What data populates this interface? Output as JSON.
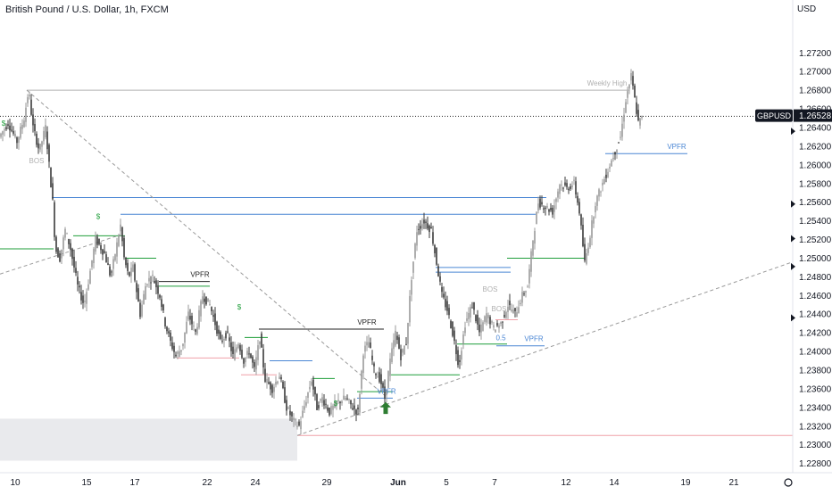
{
  "header": {
    "title": "British Pound / U.S. Dollar, 1h, FXCM"
  },
  "colors": {
    "candle_dark": "#3a3a3a",
    "candle_light": "#9a9a9a",
    "green": "#1f9e3a",
    "blue": "#4a86d4",
    "pink": "#f0a0a8",
    "gray_line": "#b0b0b0",
    "dark_line": "#222222",
    "arrow": "#2e7d32",
    "zone": "#e9eaed"
  },
  "chart_data": {
    "type": "candlestick",
    "title": "British Pound / U.S. Dollar, 1h, FXCM",
    "y_axis_label": "USD",
    "ylim": [
      1.2272,
      1.2748
    ],
    "y_ticks": [
      {
        "value": 1.272,
        "label": "1.27200"
      },
      {
        "value": 1.27,
        "label": "1.27000"
      },
      {
        "value": 1.268,
        "label": "1.26800"
      },
      {
        "value": 1.266,
        "label": "1.26600"
      },
      {
        "value": 1.264,
        "label": "1.26400"
      },
      {
        "value": 1.262,
        "label": "1.26200"
      },
      {
        "value": 1.26,
        "label": "1.26000"
      },
      {
        "value": 1.258,
        "label": "1.25800"
      },
      {
        "value": 1.256,
        "label": "1.25600"
      },
      {
        "value": 1.254,
        "label": "1.25400"
      },
      {
        "value": 1.252,
        "label": "1.25200"
      },
      {
        "value": 1.25,
        "label": "1.25000"
      },
      {
        "value": 1.248,
        "label": "1.24800"
      },
      {
        "value": 1.246,
        "label": "1.24600"
      },
      {
        "value": 1.244,
        "label": "1.24400"
      },
      {
        "value": 1.242,
        "label": "1.24200"
      },
      {
        "value": 1.24,
        "label": "1.24000"
      },
      {
        "value": 1.238,
        "label": "1.23800"
      },
      {
        "value": 1.236,
        "label": "1.23600"
      },
      {
        "value": 1.234,
        "label": "1.23400"
      },
      {
        "value": 1.232,
        "label": "1.23200"
      },
      {
        "value": 1.23,
        "label": "1.23000"
      },
      {
        "value": 1.228,
        "label": "1.22800"
      }
    ],
    "x_ticks": [
      "10",
      "15",
      "17",
      "22",
      "24",
      "29",
      "Jun",
      "5",
      "7",
      "12",
      "14",
      "19",
      "21"
    ],
    "x_tick_bold": "Jun",
    "last_price": {
      "symbol": "GBPUSD",
      "value": 1.26528,
      "label": "1.26528"
    },
    "axis_markers": [
      1.2636,
      1.2558,
      1.2521,
      1.2491,
      1.2436
    ],
    "price_path": [
      [
        0,
        1.263
      ],
      [
        10,
        1.2645
      ],
      [
        20,
        1.2625
      ],
      [
        28,
        1.265
      ],
      [
        33,
        1.268
      ],
      [
        38,
        1.264
      ],
      [
        45,
        1.2615
      ],
      [
        52,
        1.264
      ],
      [
        56,
        1.26
      ],
      [
        60,
        1.256
      ],
      [
        63,
        1.251
      ],
      [
        68,
        1.25
      ],
      [
        74,
        1.253
      ],
      [
        80,
        1.251
      ],
      [
        88,
        1.247
      ],
      [
        95,
        1.245
      ],
      [
        100,
        1.2475
      ],
      [
        108,
        1.252
      ],
      [
        118,
        1.2505
      ],
      [
        125,
        1.248
      ],
      [
        132,
        1.2515
      ],
      [
        136,
        1.2535
      ],
      [
        140,
        1.25
      ],
      [
        145,
        1.248
      ],
      [
        150,
        1.249
      ],
      [
        158,
        1.244
      ],
      [
        165,
        1.2475
      ],
      [
        172,
        1.248
      ],
      [
        180,
        1.246
      ],
      [
        186,
        1.243
      ],
      [
        192,
        1.241
      ],
      [
        198,
        1.2395
      ],
      [
        205,
        1.2405
      ],
      [
        212,
        1.244
      ],
      [
        220,
        1.242
      ],
      [
        228,
        1.246
      ],
      [
        236,
        1.245
      ],
      [
        242,
        1.243
      ],
      [
        248,
        1.241
      ],
      [
        255,
        1.242
      ],
      [
        262,
        1.2395
      ],
      [
        268,
        1.241
      ],
      [
        274,
        1.239
      ],
      [
        280,
        1.24
      ],
      [
        286,
        1.238
      ],
      [
        292,
        1.2415
      ],
      [
        298,
        1.237
      ],
      [
        306,
        1.236
      ],
      [
        314,
        1.2375
      ],
      [
        322,
        1.234
      ],
      [
        330,
        1.2325
      ],
      [
        336,
        1.232
      ],
      [
        343,
        1.2345
      ],
      [
        350,
        1.237
      ],
      [
        356,
        1.234
      ],
      [
        362,
        1.235
      ],
      [
        370,
        1.2335
      ],
      [
        378,
        1.2345
      ],
      [
        388,
        1.235
      ],
      [
        396,
        1.234
      ],
      [
        402,
        1.2335
      ],
      [
        408,
        1.24
      ],
      [
        414,
        1.241
      ],
      [
        420,
        1.238
      ],
      [
        427,
        1.237
      ],
      [
        432,
        1.235
      ],
      [
        438,
        1.239
      ],
      [
        444,
        1.242
      ],
      [
        450,
        1.2395
      ],
      [
        456,
        1.241
      ],
      [
        462,
        1.248
      ],
      [
        468,
        1.253
      ],
      [
        476,
        1.254
      ],
      [
        484,
        1.253
      ],
      [
        490,
        1.2495
      ],
      [
        496,
        1.246
      ],
      [
        502,
        1.2445
      ],
      [
        508,
        1.242
      ],
      [
        515,
        1.2385
      ],
      [
        522,
        1.243
      ],
      [
        530,
        1.245
      ],
      [
        538,
        1.242
      ],
      [
        546,
        1.244
      ],
      [
        554,
        1.2425
      ],
      [
        562,
        1.243
      ],
      [
        570,
        1.245
      ],
      [
        578,
        1.244
      ],
      [
        586,
        1.246
      ],
      [
        592,
        1.247
      ],
      [
        598,
        1.252
      ],
      [
        604,
        1.256
      ],
      [
        612,
        1.2555
      ],
      [
        620,
        1.255
      ],
      [
        628,
        1.258
      ],
      [
        636,
        1.2575
      ],
      [
        644,
        1.258
      ],
      [
        650,
        1.255
      ],
      [
        656,
        1.2495
      ],
      [
        662,
        1.2525
      ],
      [
        668,
        1.256
      ],
      [
        676,
        1.258
      ],
      [
        684,
        1.26
      ],
      [
        690,
        1.2615
      ],
      [
        696,
        1.263
      ],
      [
        702,
        1.267
      ],
      [
        708,
        1.2695
      ],
      [
        712,
        1.267
      ],
      [
        716,
        1.2645
      ],
      [
        720,
        1.265
      ]
    ],
    "horizontal_levels": [
      {
        "y": 1.268,
        "x0": 30,
        "x1": 705,
        "color": "gray",
        "style": "solid"
      },
      {
        "y": 1.2652,
        "x0": 0,
        "x1": 888,
        "color": "dark",
        "style": "dotted"
      },
      {
        "y": 1.2565,
        "x0": 58,
        "x1": 612,
        "color": "blue",
        "style": "solid"
      },
      {
        "y": 1.2547,
        "x0": 135,
        "x1": 600,
        "color": "blue",
        "style": "solid"
      },
      {
        "y": 1.251,
        "x0": 0,
        "x1": 60,
        "color": "green",
        "style": "solid"
      },
      {
        "y": 1.2524,
        "x0": 82,
        "x1": 140,
        "color": "green",
        "style": "solid"
      },
      {
        "y": 1.25,
        "x0": 140,
        "x1": 175,
        "color": "green",
        "style": "solid"
      },
      {
        "y": 1.25,
        "x0": 568,
        "x1": 655,
        "color": "green",
        "style": "solid"
      },
      {
        "y": 1.2485,
        "x0": 488,
        "x1": 572,
        "color": "blue",
        "style": "solid"
      },
      {
        "y": 1.249,
        "x0": 488,
        "x1": 572,
        "color": "blue",
        "style": "solid"
      },
      {
        "y": 1.2475,
        "x0": 178,
        "x1": 235,
        "color": "dark",
        "style": "solid"
      },
      {
        "y": 1.247,
        "x0": 178,
        "x1": 235,
        "color": "green",
        "style": "solid"
      },
      {
        "y": 1.2424,
        "x0": 290,
        "x1": 430,
        "color": "dark",
        "style": "solid"
      },
      {
        "y": 1.2415,
        "x0": 274,
        "x1": 300,
        "color": "green",
        "style": "solid"
      },
      {
        "y": 1.2393,
        "x0": 198,
        "x1": 268,
        "color": "pink",
        "style": "solid"
      },
      {
        "y": 1.2408,
        "x0": 512,
        "x1": 568,
        "color": "green",
        "style": "solid"
      },
      {
        "y": 1.2406,
        "x0": 556,
        "x1": 610,
        "color": "blue",
        "style": "solid"
      },
      {
        "y": 1.239,
        "x0": 302,
        "x1": 350,
        "color": "blue",
        "style": "solid"
      },
      {
        "y": 1.2375,
        "x0": 270,
        "x1": 310,
        "color": "pink",
        "style": "solid"
      },
      {
        "y": 1.2375,
        "x0": 438,
        "x1": 515,
        "color": "green",
        "style": "solid"
      },
      {
        "y": 1.2371,
        "x0": 350,
        "x1": 375,
        "color": "green",
        "style": "solid"
      },
      {
        "y": 1.2357,
        "x0": 400,
        "x1": 440,
        "color": "green",
        "style": "solid"
      },
      {
        "y": 1.235,
        "x0": 400,
        "x1": 440,
        "color": "blue",
        "style": "solid"
      },
      {
        "y": 1.231,
        "x0": 333,
        "x1": 888,
        "color": "pink",
        "style": "solid"
      },
      {
        "y": 1.2612,
        "x0": 678,
        "x1": 770,
        "color": "blue",
        "style": "solid"
      },
      {
        "y": 1.2434,
        "x0": 555,
        "x1": 580,
        "color": "pink",
        "style": "solid"
      }
    ],
    "diagonals": [
      {
        "x0": 30,
        "y0": 1.268,
        "x1": 432,
        "y1": 1.2352
      },
      {
        "x0": 0,
        "y0": 1.2483,
        "x1": 135,
        "y1": 1.2525
      },
      {
        "x0": 333,
        "y0": 1.231,
        "x1": 888,
        "y1": 1.2496
      }
    ],
    "zone": {
      "x0": 0,
      "x1": 333,
      "y_top": 1.2328,
      "y_bottom": 1.2283
    },
    "annotations": [
      {
        "text": "Weekly High",
        "x": 680,
        "y": 1.2683,
        "color": "gray"
      },
      {
        "text": "VPFR",
        "x": 758,
        "y": 1.2615,
        "color": "blue"
      },
      {
        "text": "VPFR",
        "x": 224,
        "y": 1.2478,
        "color": "dark"
      },
      {
        "text": "VPFR",
        "x": 411,
        "y": 1.2427,
        "color": "dark"
      },
      {
        "text": "VPFR",
        "x": 598,
        "y": 1.2409,
        "color": "blue"
      },
      {
        "text": "VPFR",
        "x": 433,
        "y": 1.2353,
        "color": "blue"
      },
      {
        "text": "BOS",
        "x": 41,
        "y": 1.26,
        "color": "gray"
      },
      {
        "text": "BOS",
        "x": 549,
        "y": 1.2462,
        "color": "gray"
      },
      {
        "text": "BOS",
        "x": 559,
        "y": 1.2441,
        "color": "gray"
      },
      {
        "text": "0.5",
        "x": 561,
        "y": 1.241,
        "color": "blue"
      },
      {
        "text": "$",
        "x": 4,
        "y": 1.264,
        "color": "green"
      },
      {
        "text": "$",
        "x": 110,
        "y": 1.254,
        "color": "green"
      },
      {
        "text": "$",
        "x": 268,
        "y": 1.2443,
        "color": "green"
      },
      {
        "text": "$",
        "x": 376,
        "y": 1.234,
        "color": "green"
      }
    ],
    "arrow": {
      "x": 432,
      "y_tip": 1.2346,
      "y_base": 1.2333,
      "direction": "up"
    }
  }
}
